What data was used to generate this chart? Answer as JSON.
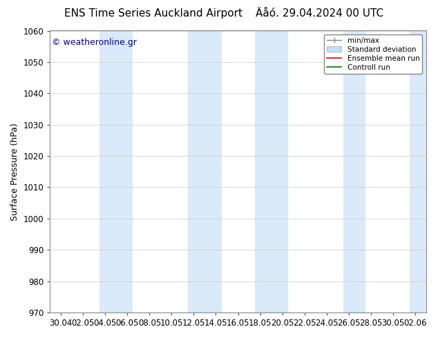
{
  "title_left": "ENS Time Series Auckland Airport",
  "title_right": "Äåό. 29.04.2024 00 UTC",
  "ylabel": "Surface Pressure (hPa)",
  "ylim": [
    970,
    1060
  ],
  "yticks": [
    970,
    980,
    990,
    1000,
    1010,
    1020,
    1030,
    1040,
    1050,
    1060
  ],
  "x_tick_labels": [
    "30.04",
    "02.05",
    "04.05",
    "06.05",
    "08.05",
    "10.05",
    "12.05",
    "14.05",
    "16.05",
    "18.05",
    "20.05",
    "22.05",
    "24.05",
    "26.05",
    "28.05",
    "30.05",
    "02.06"
  ],
  "copyright_text": "© weatheronline.gr",
  "copyright_color": "#0000cc",
  "bg_color": "#ffffff",
  "plot_bg_color": "#ffffff",
  "band_color": "#daeaf8",
  "legend_entries": [
    "min/max",
    "Standard deviation",
    "Ensemble mean run",
    "Controll run"
  ],
  "legend_line_color": "#aaaaaa",
  "legend_std_color": "#c8ddf0",
  "legend_ens_color": "#ff0000",
  "legend_ctrl_color": "#008000",
  "grid_color": "#cccccc",
  "tick_label_fontsize": 8.5,
  "title_fontsize": 11,
  "ylabel_fontsize": 9
}
